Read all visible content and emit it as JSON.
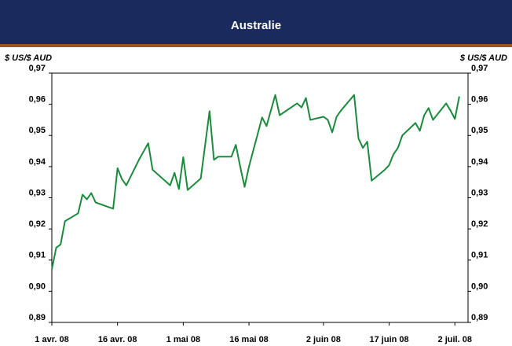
{
  "chart_data": {
    "type": "line",
    "title": "Australie",
    "ylabel": "$ US/$ AUD",
    "y2label": "$ US/$ AUD",
    "x": [
      "2008-04-01",
      "2008-04-02",
      "2008-04-03",
      "2008-04-04",
      "2008-04-07",
      "2008-04-08",
      "2008-04-09",
      "2008-04-10",
      "2008-04-11",
      "2008-04-14",
      "2008-04-15",
      "2008-04-16",
      "2008-04-17",
      "2008-04-18",
      "2008-04-21",
      "2008-04-22",
      "2008-04-23",
      "2008-04-24",
      "2008-04-28",
      "2008-04-29",
      "2008-04-30",
      "2008-05-01",
      "2008-05-02",
      "2008-05-05",
      "2008-05-06",
      "2008-05-07",
      "2008-05-08",
      "2008-05-09",
      "2008-05-12",
      "2008-05-13",
      "2008-05-14",
      "2008-05-15",
      "2008-05-16",
      "2008-05-19",
      "2008-05-20",
      "2008-05-21",
      "2008-05-22",
      "2008-05-23",
      "2008-05-27",
      "2008-05-28",
      "2008-05-29",
      "2008-05-30",
      "2008-06-02",
      "2008-06-03",
      "2008-06-04",
      "2008-06-05",
      "2008-06-06",
      "2008-06-09",
      "2008-06-10",
      "2008-06-11",
      "2008-06-12",
      "2008-06-13",
      "2008-06-16",
      "2008-06-17",
      "2008-06-18",
      "2008-06-19",
      "2008-06-20",
      "2008-06-23",
      "2008-06-24",
      "2008-06-25",
      "2008-06-26",
      "2008-06-27",
      "2008-06-30",
      "2008-07-01",
      "2008-07-02",
      "2008-07-03"
    ],
    "series": [
      {
        "name": "Australie",
        "color": "#1a8a3c",
        "values": [
          0.907,
          0.914,
          0.915,
          0.9225,
          0.925,
          0.931,
          0.9295,
          0.9315,
          0.9285,
          0.927,
          0.9265,
          0.9395,
          0.936,
          0.934,
          0.9425,
          0.945,
          0.9475,
          0.939,
          0.934,
          0.938,
          0.9328,
          0.943,
          0.9325,
          0.9362,
          0.947,
          0.9578,
          0.9422,
          0.9432,
          0.9432,
          0.947,
          0.94,
          0.9335,
          0.94,
          0.9558,
          0.953,
          0.958,
          0.963,
          0.9565,
          0.9603,
          0.959,
          0.962,
          0.955,
          0.956,
          0.955,
          0.951,
          0.956,
          0.958,
          0.963,
          0.949,
          0.946,
          0.948,
          0.9355,
          0.939,
          0.9405,
          0.944,
          0.946,
          0.95,
          0.954,
          0.9515,
          0.9565,
          0.9588,
          0.955,
          0.9603,
          0.958,
          0.9553,
          0.9625
        ]
      }
    ],
    "xlim": [
      "2008-04-01",
      "2008-07-05"
    ],
    "xticks": [
      {
        "value": "2008-04-01",
        "label": "1 avr. 08"
      },
      {
        "value": "2008-04-16",
        "label": "16 avr. 08"
      },
      {
        "value": "2008-05-01",
        "label": "1 mai 08"
      },
      {
        "value": "2008-05-16",
        "label": "16 mai 08"
      },
      {
        "value": "2008-06-02",
        "label": "2 juin 08"
      },
      {
        "value": "2008-06-17",
        "label": "17 juin 08"
      },
      {
        "value": "2008-07-02",
        "label": "2 juil. 08"
      }
    ],
    "ylim": [
      0.89,
      0.97
    ],
    "yticks": [
      {
        "value": 0.89,
        "label": "0,89"
      },
      {
        "value": 0.9,
        "label": "0,90"
      },
      {
        "value": 0.91,
        "label": "0,91"
      },
      {
        "value": 0.92,
        "label": "0,92"
      },
      {
        "value": 0.93,
        "label": "0,93"
      },
      {
        "value": 0.94,
        "label": "0,94"
      },
      {
        "value": 0.95,
        "label": "0,95"
      },
      {
        "value": 0.96,
        "label": "0,96"
      },
      {
        "value": 0.97,
        "label": "0,97"
      }
    ],
    "y2lim": [
      0.89,
      0.97
    ],
    "y2ticks": [
      {
        "value": 0.89,
        "label": "0,89"
      },
      {
        "value": 0.9,
        "label": "0,90"
      },
      {
        "value": 0.91,
        "label": "0,91"
      },
      {
        "value": 0.92,
        "label": "0,92"
      },
      {
        "value": 0.93,
        "label": "0,93"
      },
      {
        "value": 0.94,
        "label": "0,94"
      },
      {
        "value": 0.95,
        "label": "0,95"
      },
      {
        "value": 0.96,
        "label": "0,96"
      },
      {
        "value": 0.97,
        "label": "0,97"
      }
    ],
    "grid": false
  }
}
